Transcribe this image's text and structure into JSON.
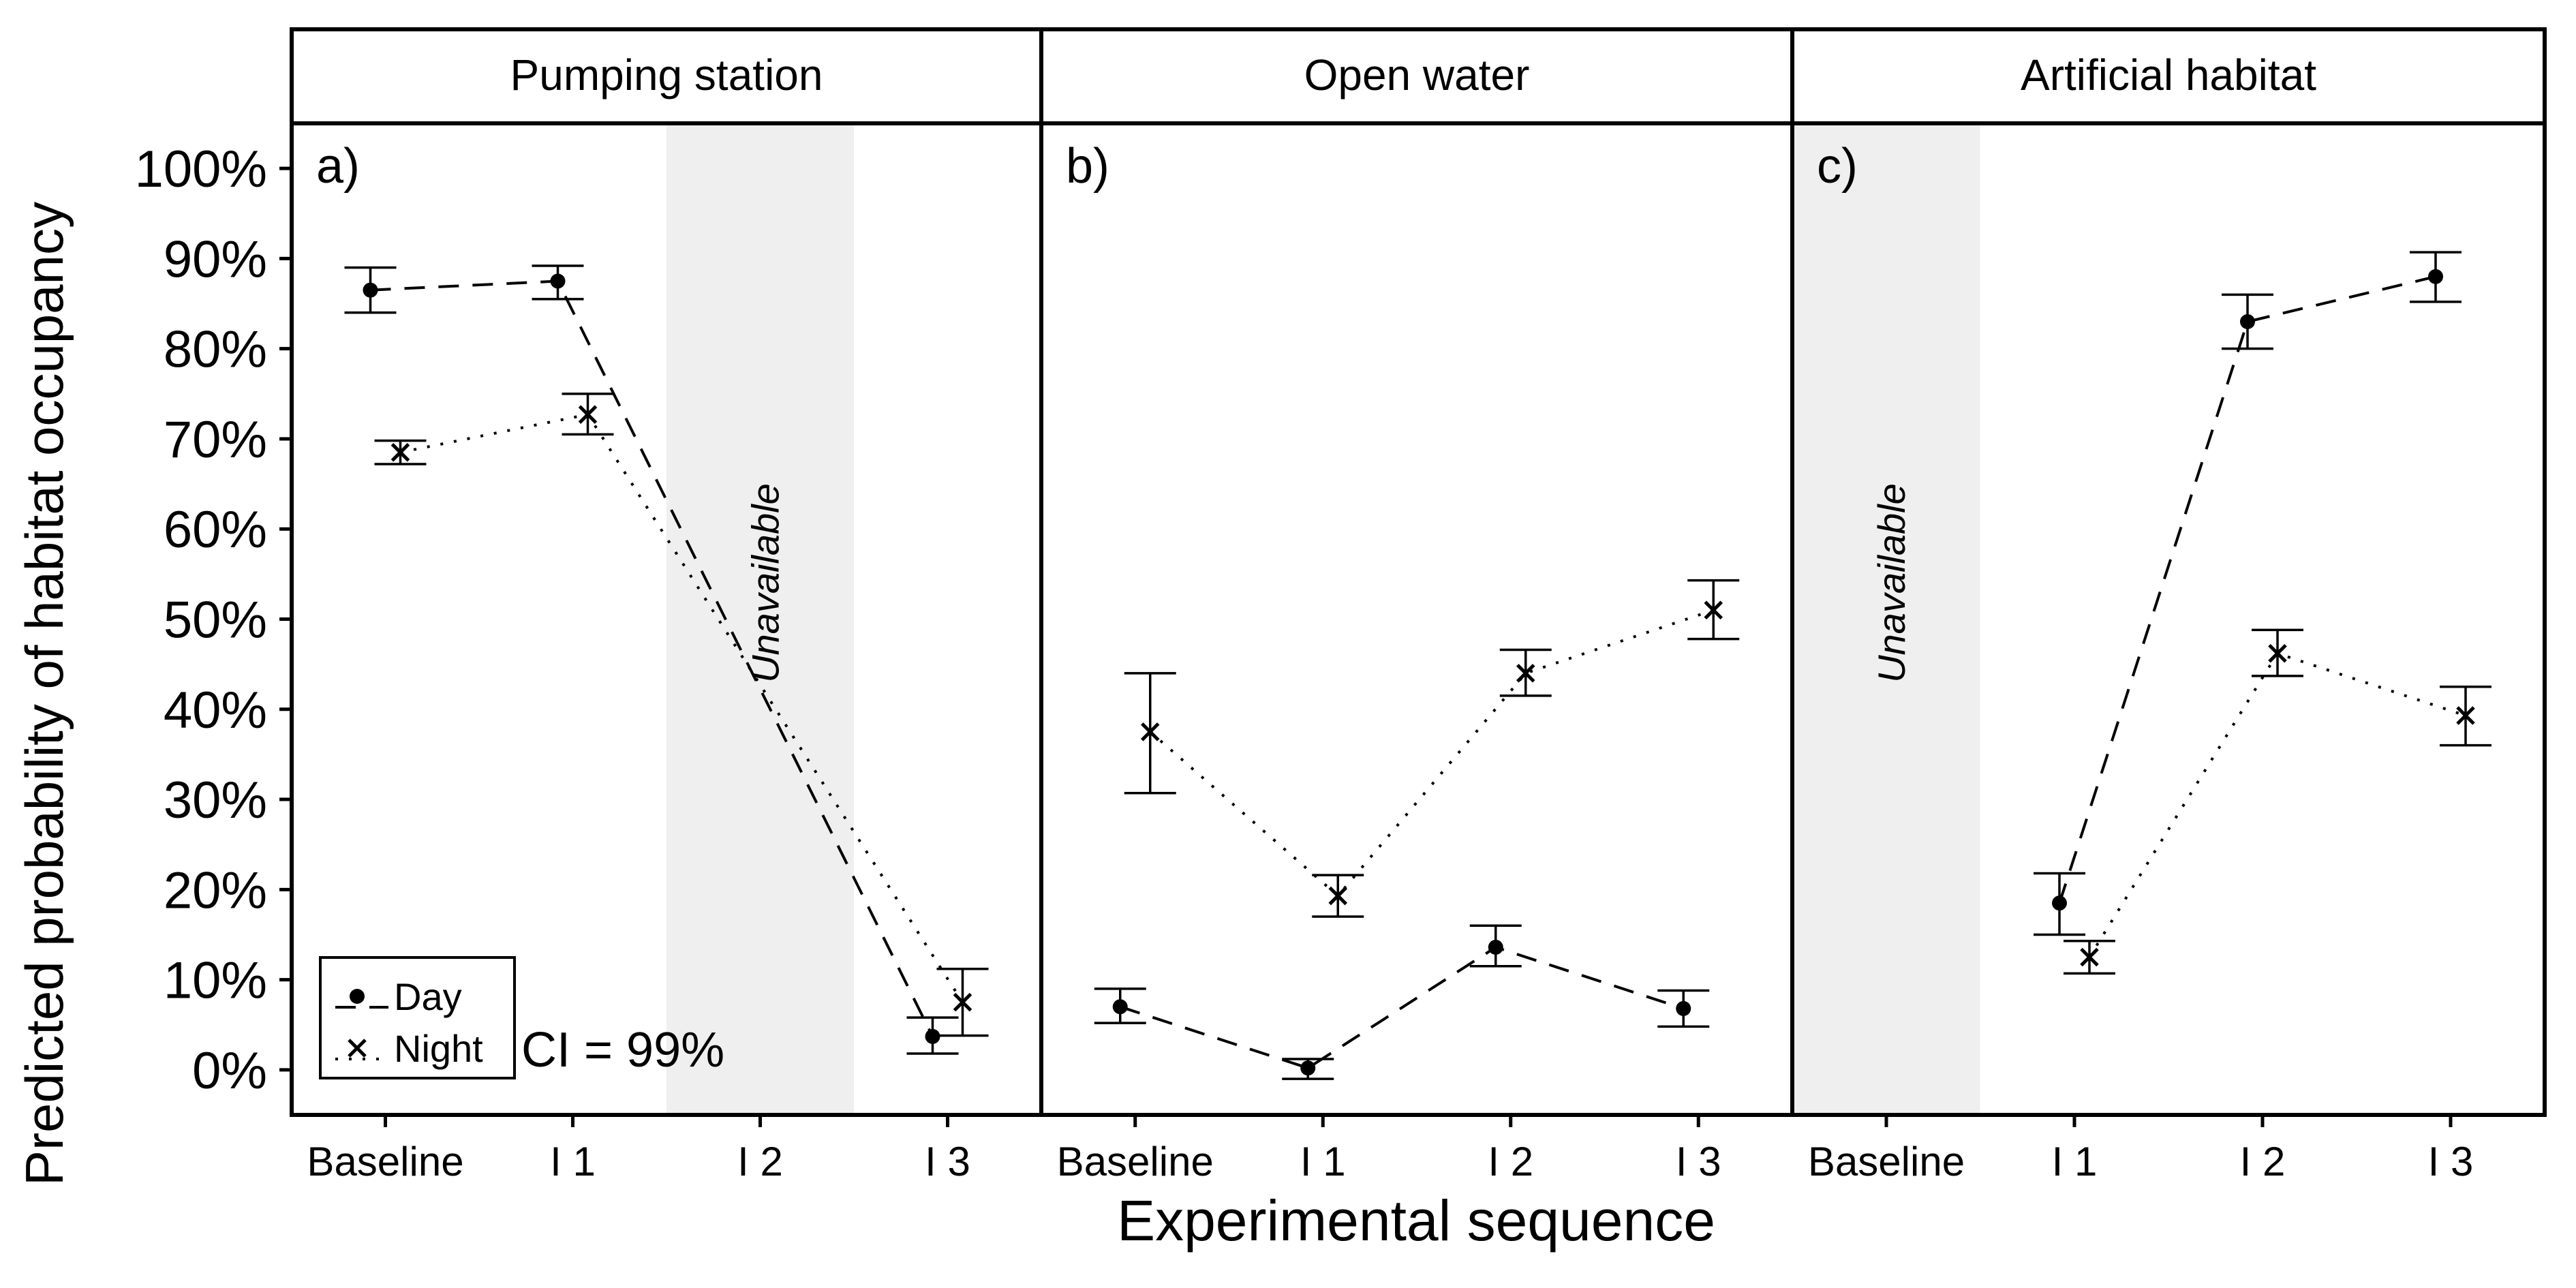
{
  "chart_data": {
    "type": "line",
    "ylabel": "Predicted probability of habitat occupancy",
    "xlabel": "Experimental sequence",
    "categories": [
      "Baseline",
      "I 1",
      "I 2",
      "I 3"
    ],
    "y_ticks": [
      "0%",
      "10%",
      "20%",
      "30%",
      "40%",
      "50%",
      "60%",
      "70%",
      "80%",
      "90%",
      "100%"
    ],
    "ylim": [
      -0.05,
      1.05
    ],
    "annotation": "CI = 99%",
    "unavailable_label": "Unavailable",
    "legend": {
      "placement": "bottom-left",
      "entries": [
        {
          "name": "Day",
          "marker": "dot",
          "linetype": "dashed"
        },
        {
          "name": "Night",
          "marker": "x",
          "linetype": "dotted"
        }
      ]
    },
    "panels": [
      {
        "title": "Pumping station",
        "tag": "a)",
        "unavailable_category": "I 2",
        "series": [
          {
            "name": "Day",
            "points": [
              {
                "x": "Baseline",
                "y": 0.865,
                "lo": 0.84,
                "hi": 0.89
              },
              {
                "x": "I 1",
                "y": 0.875,
                "lo": 0.855,
                "hi": 0.892
              },
              {
                "x": "I 3",
                "y": 0.037,
                "lo": 0.018,
                "hi": 0.058
              }
            ]
          },
          {
            "name": "Night",
            "points": [
              {
                "x": "Baseline",
                "y": 0.685,
                "lo": 0.672,
                "hi": 0.698
              },
              {
                "x": "I 1",
                "y": 0.727,
                "lo": 0.705,
                "hi": 0.75
              },
              {
                "x": "I 3",
                "y": 0.075,
                "lo": 0.038,
                "hi": 0.112
              }
            ]
          }
        ]
      },
      {
        "title": "Open water",
        "tag": "b)",
        "unavailable_category": null,
        "series": [
          {
            "name": "Day",
            "points": [
              {
                "x": "Baseline",
                "y": 0.07,
                "lo": 0.052,
                "hi": 0.09
              },
              {
                "x": "I 1",
                "y": 0.002,
                "lo": -0.01,
                "hi": 0.012
              },
              {
                "x": "I 2",
                "y": 0.136,
                "lo": 0.115,
                "hi": 0.16
              },
              {
                "x": "I 3",
                "y": 0.068,
                "lo": 0.048,
                "hi": 0.088
              }
            ]
          },
          {
            "name": "Night",
            "points": [
              {
                "x": "Baseline",
                "y": 0.375,
                "lo": 0.307,
                "hi": 0.44
              },
              {
                "x": "I 1",
                "y": 0.193,
                "lo": 0.17,
                "hi": 0.216
              },
              {
                "x": "I 2",
                "y": 0.44,
                "lo": 0.415,
                "hi": 0.466
              },
              {
                "x": "I 3",
                "y": 0.51,
                "lo": 0.478,
                "hi": 0.543
              }
            ]
          }
        ]
      },
      {
        "title": "Artificial habitat",
        "tag": "c)",
        "unavailable_category": "Baseline",
        "series": [
          {
            "name": "Day",
            "points": [
              {
                "x": "I 1",
                "y": 0.185,
                "lo": 0.15,
                "hi": 0.218
              },
              {
                "x": "I 2",
                "y": 0.83,
                "lo": 0.8,
                "hi": 0.86
              },
              {
                "x": "I 3",
                "y": 0.88,
                "lo": 0.852,
                "hi": 0.907
              }
            ]
          },
          {
            "name": "Night",
            "points": [
              {
                "x": "I 1",
                "y": 0.125,
                "lo": 0.107,
                "hi": 0.143
              },
              {
                "x": "I 2",
                "y": 0.462,
                "lo": 0.437,
                "hi": 0.488
              },
              {
                "x": "I 3",
                "y": 0.393,
                "lo": 0.36,
                "hi": 0.425
              }
            ]
          }
        ]
      }
    ]
  }
}
